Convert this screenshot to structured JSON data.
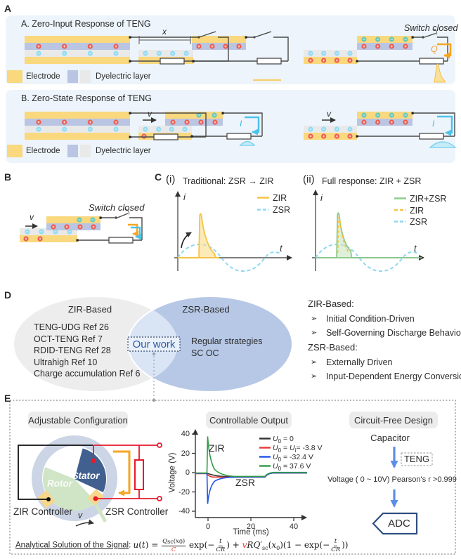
{
  "panel_a": {
    "label": "A",
    "zir_box": {
      "title": "A. Zero-Input Response of TENG",
      "x_dim": "x",
      "switch_closed": "Switch closed",
      "q": "Q",
      "legend_electrode": "Electrode",
      "legend_dielectric": "Dyelectric layer"
    },
    "zsr_box": {
      "title": "B. Zero-State Response of TENG",
      "v": "v",
      "i": "I",
      "legend_electrode": "Electrode",
      "legend_dielectric": "Dyelectric layer"
    }
  },
  "panel_b": {
    "label": "B",
    "switch_closed": "Switch closed",
    "v": "v"
  },
  "panel_c": {
    "label": "C",
    "plot1": {
      "index": "(i)",
      "title": "Traditional: ZSR → ZIR",
      "ylabel": "i",
      "xlabel": "t",
      "legend": [
        "ZIR",
        "ZSR"
      ]
    },
    "plot2": {
      "index": "(ii)",
      "title": "Full response: ZIR + ZSR",
      "ylabel": "i",
      "xlabel": "t",
      "legend": [
        "ZIR+ZSR",
        "ZIR",
        "ZSR"
      ]
    }
  },
  "panel_d": {
    "label": "D",
    "venn": {
      "left_title": "ZIR-Based",
      "left_items": [
        "TENG-UDG Ref 26",
        "OCT-TENG Ref 7",
        "RDID-TENG Ref 28",
        "Ultrahigh Ref 10",
        "Charge accumulation Ref 6"
      ],
      "right_title": "ZSR-Based",
      "right_items": [
        "Regular strategies",
        "SC OC"
      ],
      "center": "Our work"
    },
    "notes": {
      "zir_heading": "ZIR-Based:",
      "zir_items": [
        "Initial Condition-Driven",
        "Self-Governing Discharge Behavior"
      ],
      "zsr_heading": "ZSR-Based:",
      "zsr_items": [
        "Externally Driven",
        "Input-Dependent Energy Conversion"
      ],
      "bullet": "➢"
    }
  },
  "panel_e": {
    "label": "E",
    "left": {
      "header": "Adjustable Configuration",
      "stator": "Stator",
      "rotor": "Rotor",
      "zir_controller": "ZIR Controller",
      "zsr_controller": "ZSR Controller",
      "v": "v"
    },
    "middle": {
      "header": "Controllable Output",
      "ylabel": "Voltage (V)",
      "xlabel": "Time (ms)",
      "yticks": [
        "40",
        "20",
        "0",
        "-20",
        "-40"
      ],
      "xticks": [
        "0",
        "20",
        "40"
      ],
      "zir": "ZIR",
      "zsr": "ZSR",
      "legend": [
        [
          {
            "t": "U",
            "i": 1
          },
          {
            "t": "0",
            "s": 1
          },
          {
            "t": " = 0"
          }
        ],
        [
          {
            "t": "U",
            "i": 1
          },
          {
            "t": "0",
            "s": 1
          },
          {
            "t": " = "
          },
          {
            "t": "U",
            "i": 1
          },
          {
            "t": "i",
            "s": 1
          },
          {
            "t": "= -3.8 V"
          }
        ],
        [
          {
            "t": "U",
            "i": 1
          },
          {
            "t": "0",
            "s": 1
          },
          {
            "t": " = -32.4 V"
          }
        ],
        [
          {
            "t": "U",
            "i": 1
          },
          {
            "t": "0",
            "s": 1
          },
          {
            "t": " =  37.6 V"
          }
        ]
      ]
    },
    "right": {
      "header": "Circuit-Free Design",
      "capacitor": "Capacitor",
      "teng": "TENG",
      "voltage_line": "Voltage ( 0 ~ 10V) Pearson's r >0.999",
      "adc": "ADC"
    },
    "formula": {
      "label": "Analytical Solution of the Signal",
      "colon": ": ",
      "parts": [
        {
          "t": "u",
          "i": 1
        },
        {
          "t": "("
        },
        {
          "t": "t",
          "i": 1
        },
        {
          "t": ") = "
        },
        {
          "f": {
            "num": [
              {
                "t": "Q",
                "i": 1
              },
              {
                "t": "sc",
                "s": 1
              },
              {
                "t": "("
              },
              {
                "t": "x",
                "i": 1
              },
              {
                "t": "0",
                "s": 1
              },
              {
                "t": ")"
              }
            ],
            "den": [
              {
                "t": "C",
                "i": 1,
                "r": 1
              }
            ]
          }
        },
        {
          "t": " exp"
        },
        {
          "t": "(−"
        },
        {
          "f": {
            "num": [
              {
                "t": "t",
                "i": 1
              }
            ],
            "den": [
              {
                "t": "CR",
                "i": 1
              }
            ]
          }
        },
        {
          "t": ")"
        },
        {
          "t": " + "
        },
        {
          "t": "v",
          "i": 1,
          "r": 1
        },
        {
          "t": "R",
          "i": 1
        },
        {
          "t": "Q",
          "i": 1
        },
        {
          "t": "′"
        },
        {
          "t": "sc",
          "s": 1
        },
        {
          "t": "("
        },
        {
          "t": "x",
          "i": 1
        },
        {
          "t": "0",
          "s": 1
        },
        {
          "t": ")(1 − exp("
        },
        {
          "t": "−"
        },
        {
          "f": {
            "num": [
              {
                "t": "t",
                "i": 1
              }
            ],
            "den": [
              {
                "t": "CR",
                "i": 1
              }
            ]
          }
        },
        {
          "t": "))"
        }
      ]
    }
  },
  "chart_data": [
    {
      "id": "panel_c_i",
      "type": "line",
      "title": "Traditional: ZSR → ZIR",
      "xlabel": "t",
      "ylabel": "i",
      "axes_numeric": false,
      "series": [
        {
          "name": "ZIR",
          "color": "#f6c445",
          "style": "solid",
          "shape": "flat zero baseline, then sharp discharge spike with exponential decay when switch closes"
        },
        {
          "name": "ZSR",
          "color": "#8ed8f3",
          "style": "dashed",
          "shape": "one full sine cycle, amplitude about one third of ZIR spike"
        }
      ],
      "legend_position": "top-right",
      "grid": false
    },
    {
      "id": "panel_c_ii",
      "type": "line",
      "title": "Full response: ZIR + ZSR",
      "xlabel": "t",
      "ylabel": "i",
      "axes_numeric": false,
      "series": [
        {
          "name": "ZIR+ZSR",
          "color": "#8fcc8a",
          "style": "solid",
          "shape": "spike riding on sine; sum of ZIR and ZSR"
        },
        {
          "name": "ZIR",
          "color": "#f6c445",
          "style": "dashed",
          "shape": "sharp spike with exponential decay"
        },
        {
          "name": "ZSR",
          "color": "#8ed8f3",
          "style": "dashed",
          "shape": "one full sine cycle"
        }
      ],
      "legend_position": "top-right",
      "grid": false
    },
    {
      "id": "panel_e_output",
      "type": "line",
      "title": "Controllable Output",
      "xlabel": "Time (ms)",
      "ylabel": "Voltage (V)",
      "xlim": [
        -5,
        46
      ],
      "ylim": [
        -45,
        45
      ],
      "xticks": [
        0,
        20,
        40
      ],
      "yticks": [
        -40,
        -20,
        0,
        20,
        40
      ],
      "annotations": [
        "ZIR",
        "ZSR"
      ],
      "grid": false,
      "legend_position": "top-right",
      "series": [
        {
          "name": "U0 = 0",
          "color": "#333333",
          "x": [
            -5,
            0,
            5,
            15,
            27,
            30,
            45
          ],
          "y": [
            0,
            0,
            -2.5,
            -4,
            -4,
            -0.5,
            -0.3
          ]
        },
        {
          "name": "U0 = Ui = -3.8 V",
          "color": "#e53935",
          "x": [
            -5,
            0,
            2,
            15,
            27,
            30,
            45
          ],
          "y": [
            0,
            -3.8,
            -4.2,
            -4.2,
            -4.2,
            -0.6,
            -0.4
          ]
        },
        {
          "name": "U0 = -32.4 V",
          "color": "#2253e8",
          "x": [
            -5,
            0,
            3,
            8,
            15,
            27,
            30,
            45
          ],
          "y": [
            0,
            -32.4,
            -15,
            -6,
            -4.3,
            -4.3,
            -0.7,
            -0.5
          ]
        },
        {
          "name": "U0 = 37.6 V",
          "color": "#2e9b44",
          "x": [
            -5,
            0,
            3,
            8,
            15,
            27,
            30,
            45
          ],
          "y": [
            0,
            37.6,
            12,
            -2,
            -4,
            -4,
            -0.9,
            -0.7
          ]
        }
      ]
    }
  ],
  "colors": {
    "electrode": "#f9d87e",
    "dielectric_blue": "#b9c5e3",
    "dielectric_gray": "#e9e9e9",
    "positive_charge": "#ee5a4c",
    "negative_teal": "#66c9bd",
    "negative_cyan": "#92dbf3",
    "zir_yellow": "#f6c445",
    "zsr_cyan": "#8ed8f3",
    "sum_green": "#8fcc8a",
    "accent_orange": "#f5a623",
    "circuit_red": "#e8192c",
    "arrow_blue": "#5b8ee8",
    "stator": "#41608f",
    "rotor": "#cfe5c5",
    "panel_bg": "#edf4fb"
  }
}
